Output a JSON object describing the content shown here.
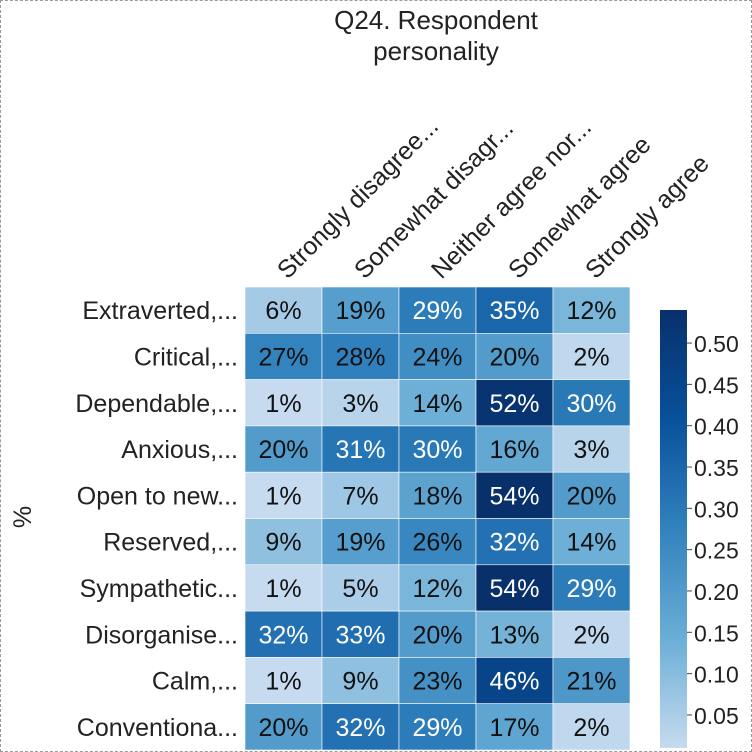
{
  "chart_data": {
    "type": "heatmap",
    "title_lines": [
      "Q24. Respondent",
      "personality"
    ],
    "ylabel": "%",
    "columns": [
      "Strongly disagree...",
      "Somewhat disagr...",
      "Neither agree nor...",
      "Somewhat agree",
      "Strongly agree"
    ],
    "rows": [
      "Extraverted,...",
      "Critical,...",
      "Dependable,...",
      "Anxious,...",
      "Open to new...",
      "Reserved,...",
      "Sympathetic...",
      "Disorganise...",
      "Calm,...",
      "Conventiona..."
    ],
    "values": [
      [
        0.06,
        0.19,
        0.29,
        0.35,
        0.12
      ],
      [
        0.27,
        0.28,
        0.24,
        0.2,
        0.02
      ],
      [
        0.01,
        0.03,
        0.14,
        0.52,
        0.3
      ],
      [
        0.2,
        0.31,
        0.3,
        0.16,
        0.03
      ],
      [
        0.01,
        0.07,
        0.18,
        0.54,
        0.2
      ],
      [
        0.09,
        0.19,
        0.26,
        0.32,
        0.14
      ],
      [
        0.01,
        0.05,
        0.12,
        0.54,
        0.29
      ],
      [
        0.32,
        0.33,
        0.2,
        0.13,
        0.02
      ],
      [
        0.01,
        0.09,
        0.23,
        0.46,
        0.21
      ],
      [
        0.2,
        0.32,
        0.29,
        0.17,
        0.02
      ]
    ],
    "labels": [
      [
        "6%",
        "19%",
        "29%",
        "35%",
        "12%"
      ],
      [
        "27%",
        "28%",
        "24%",
        "20%",
        "2%"
      ],
      [
        "1%",
        "3%",
        "14%",
        "52%",
        "30%"
      ],
      [
        "20%",
        "31%",
        "30%",
        "16%",
        "3%"
      ],
      [
        "1%",
        "7%",
        "18%",
        "54%",
        "20%"
      ],
      [
        "9%",
        "19%",
        "26%",
        "32%",
        "14%"
      ],
      [
        "1%",
        "5%",
        "12%",
        "54%",
        "29%"
      ],
      [
        "32%",
        "33%",
        "20%",
        "13%",
        "2%"
      ],
      [
        "1%",
        "9%",
        "23%",
        "46%",
        "21%"
      ],
      [
        "20%",
        "32%",
        "29%",
        "17%",
        "2%"
      ]
    ],
    "colorbar": {
      "min": 0.01,
      "max": 0.54,
      "ticks": [
        0.05,
        0.1,
        0.15,
        0.2,
        0.25,
        0.3,
        0.35,
        0.4,
        0.45,
        0.5
      ],
      "tick_labels": [
        "0.05",
        "0.10",
        "0.15",
        "0.20",
        "0.25",
        "0.30",
        "0.35",
        "0.40",
        "0.45",
        "0.50"
      ],
      "colormap": "Blues",
      "color_low": "#c6dbef",
      "color_high": "#08306b"
    }
  }
}
